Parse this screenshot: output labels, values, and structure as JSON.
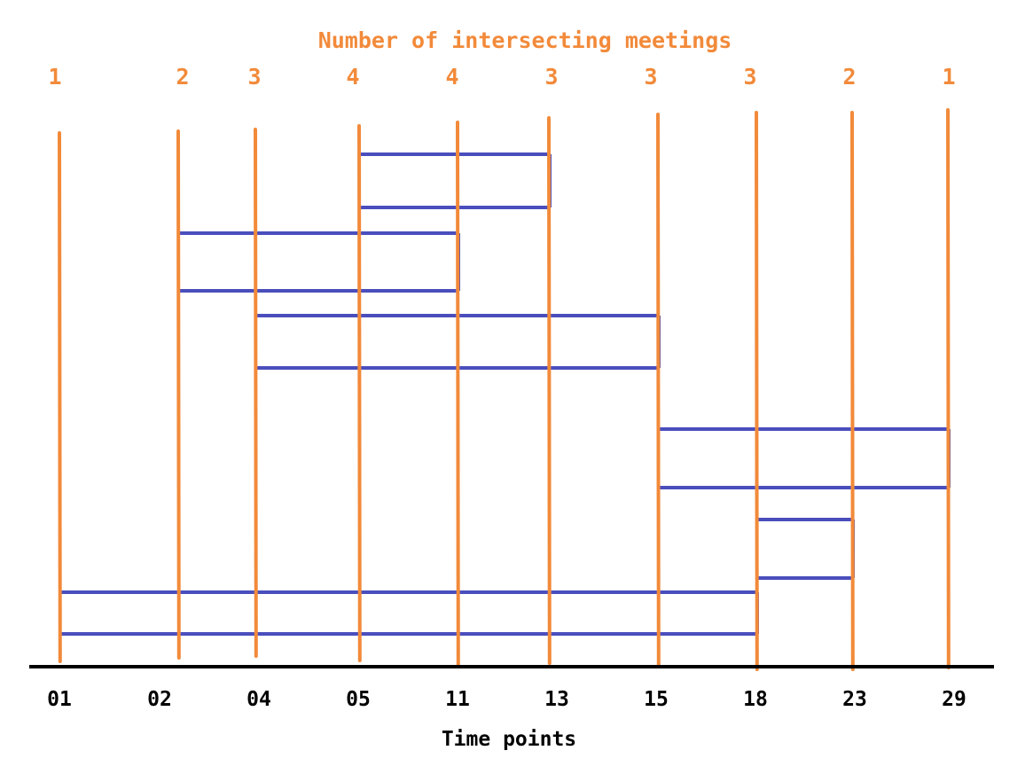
{
  "title": "Number of intersecting meetings",
  "xlabel": "Time points",
  "colors": {
    "marker": "#f28a3a",
    "meeting": "#4a4ebd",
    "axis": "#000000",
    "label": "#000000"
  },
  "time_points": [
    "01",
    "02",
    "04",
    "05",
    "11",
    "13",
    "15",
    "18",
    "23",
    "29"
  ],
  "intersection_counts": [
    "1",
    "2",
    "3",
    "4",
    "4",
    "3",
    "3",
    "3",
    "2",
    "1"
  ],
  "meetings": [
    {
      "start": "05",
      "end": "13"
    },
    {
      "start": "02",
      "end": "11"
    },
    {
      "start": "04",
      "end": "15"
    },
    {
      "start": "15",
      "end": "29"
    },
    {
      "start": "18",
      "end": "23"
    },
    {
      "start": "01",
      "end": "18"
    }
  ]
}
